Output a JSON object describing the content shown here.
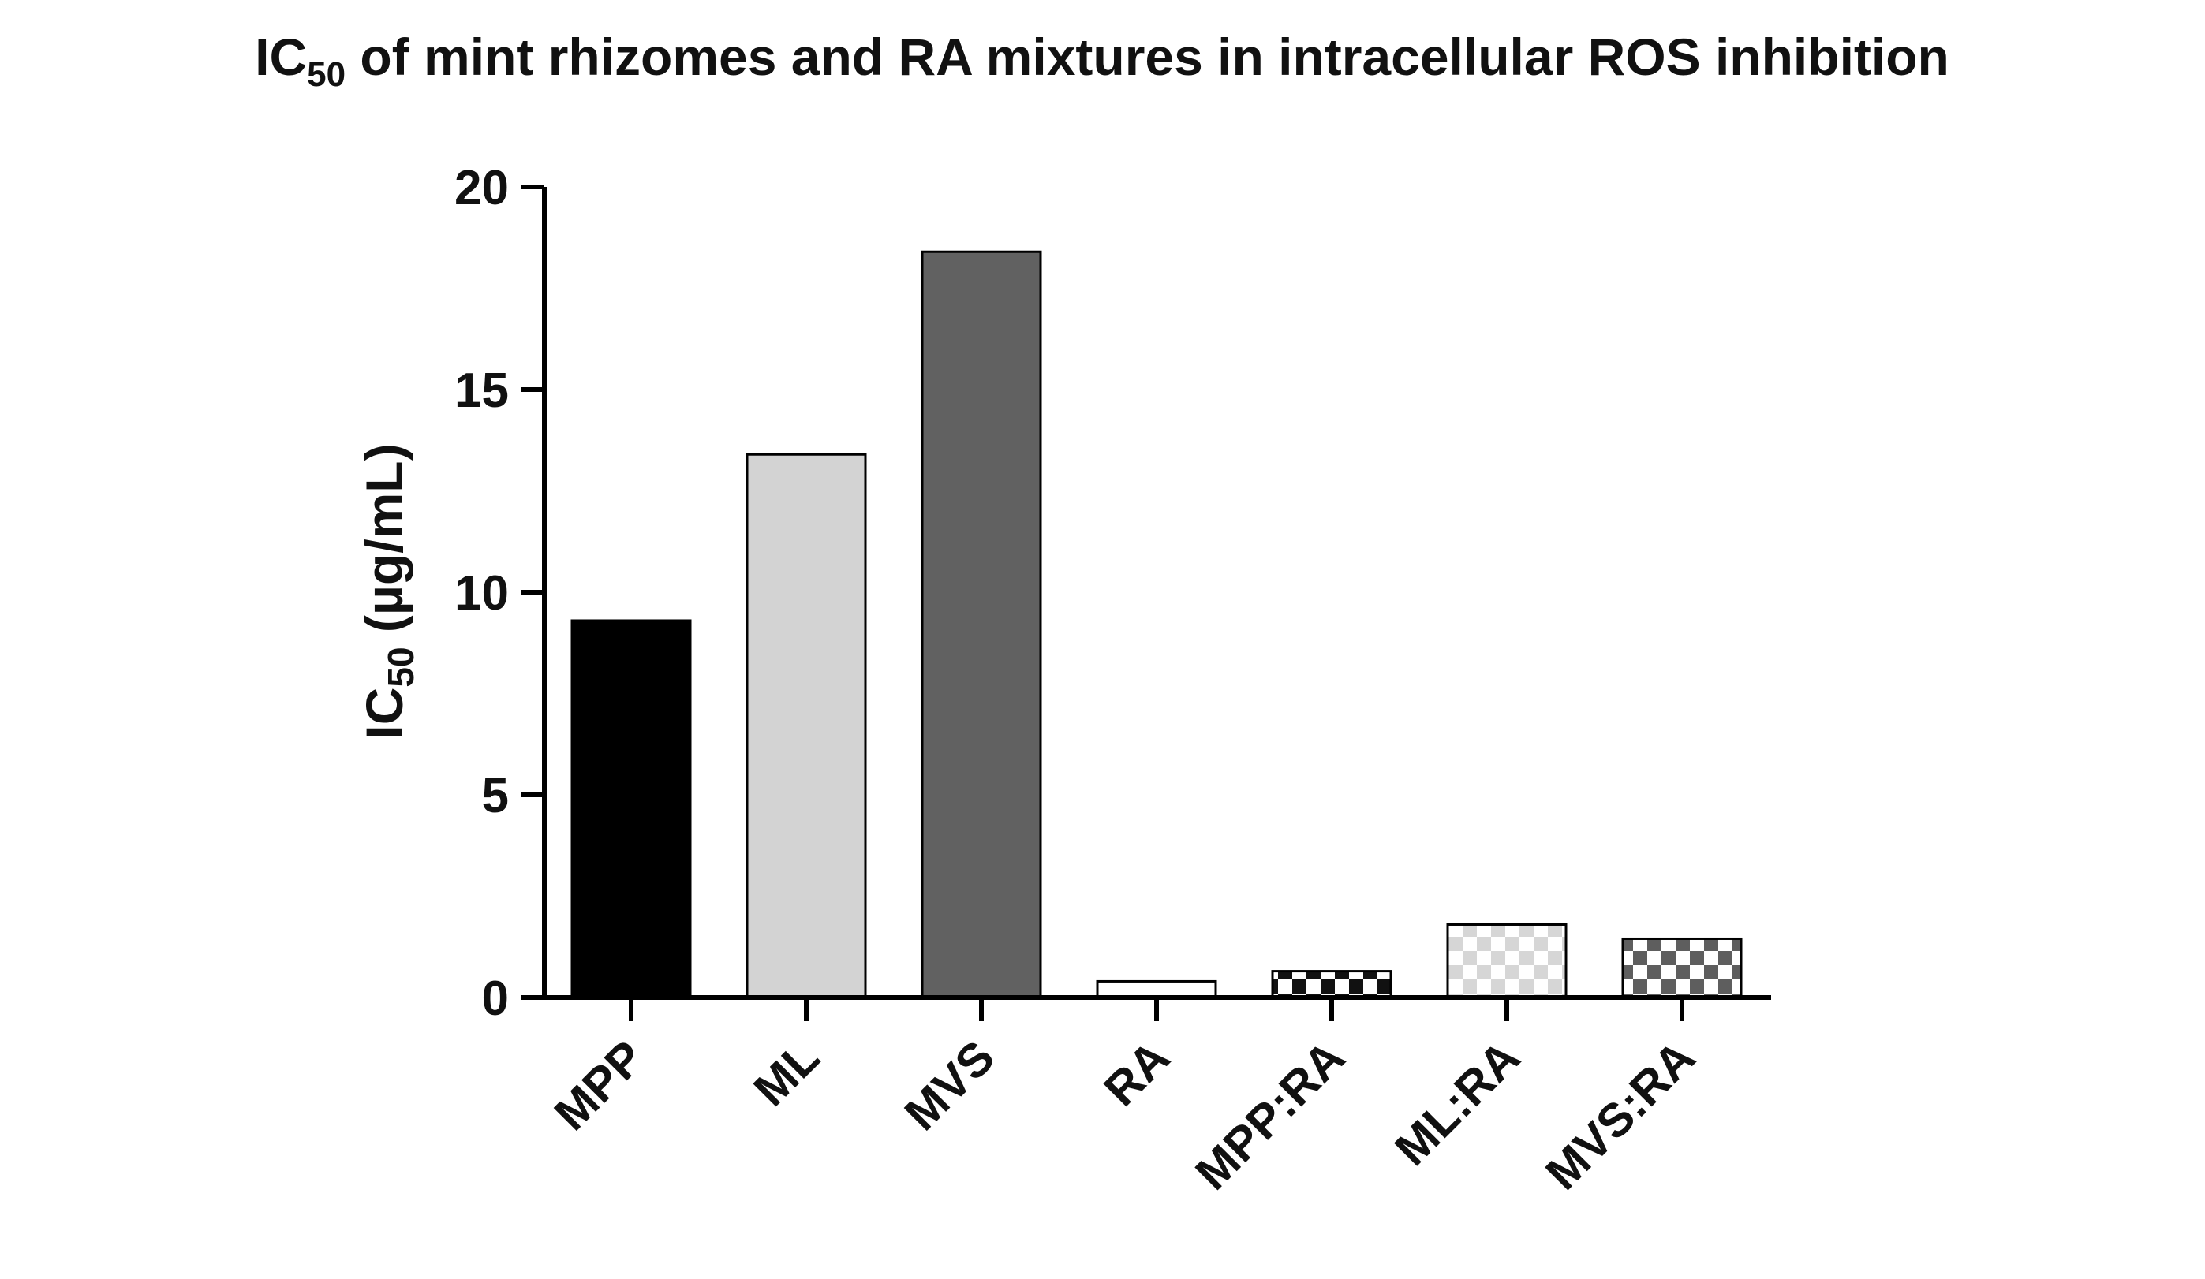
{
  "title": {
    "main": "IC",
    "sub": "50",
    "rest": " of mint rhizomes and RA mixtures in intracellular ROS inhibition"
  },
  "chart_data": {
    "type": "bar",
    "title": "IC50 of mint rhizomes and RA mixtures in intracellular ROS inhibition",
    "ylabel": "IC50 (µg/mL)",
    "ylabel_parts": {
      "main": "IC",
      "sub": "50",
      "rest": " (µg/mL)"
    },
    "xlabel": "",
    "ylim": [
      0,
      20
    ],
    "yticks": [
      0,
      5,
      10,
      15,
      20
    ],
    "categories": [
      "MPP",
      "ML",
      "MVS",
      "RA",
      "MPP:RA",
      "ML:RA",
      "MVS:RA"
    ],
    "values": [
      9.3,
      13.4,
      18.4,
      0.4,
      0.65,
      1.8,
      1.45
    ],
    "fills": [
      {
        "type": "solid",
        "color": "#000000"
      },
      {
        "type": "solid",
        "color": "#d3d3d3"
      },
      {
        "type": "solid",
        "color": "#616161"
      },
      {
        "type": "solid",
        "color": "#ffffff"
      },
      {
        "type": "checker",
        "color": "#111111"
      },
      {
        "type": "checker",
        "color": "#d6d6d6"
      },
      {
        "type": "checker",
        "color": "#5e5e5e"
      }
    ],
    "grid": false,
    "legend": "none"
  }
}
